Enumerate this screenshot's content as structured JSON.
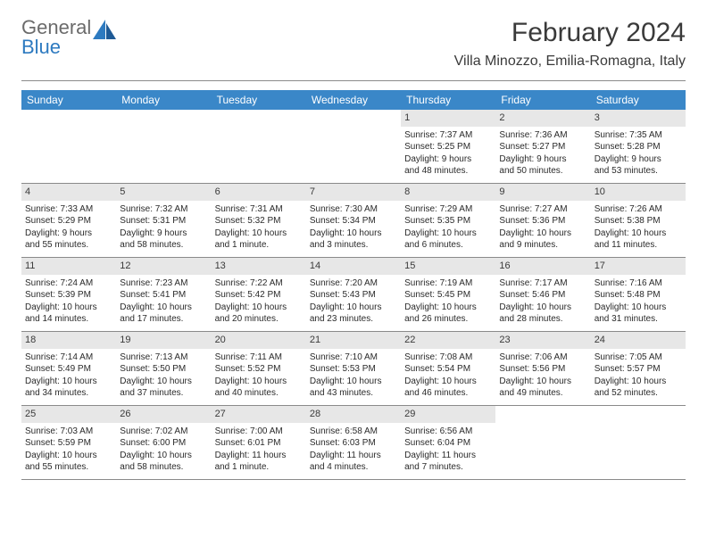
{
  "logo": {
    "word1": "General",
    "word2": "Blue"
  },
  "title": "February 2024",
  "location": "Villa Minozzo, Emilia-Romagna, Italy",
  "colors": {
    "header_bar": "#3a87c8",
    "day_band": "#e7e7e7",
    "rule": "#8a8a8a",
    "logo_gray": "#6b6b6b",
    "logo_blue": "#2d7ac0",
    "text": "#2a2a2a"
  },
  "dayheads": [
    "Sunday",
    "Monday",
    "Tuesday",
    "Wednesday",
    "Thursday",
    "Friday",
    "Saturday"
  ],
  "weeks": [
    [
      null,
      null,
      null,
      null,
      {
        "n": "1",
        "sr": "Sunrise: 7:37 AM",
        "ss": "Sunset: 5:25 PM",
        "d1": "Daylight: 9 hours",
        "d2": "and 48 minutes."
      },
      {
        "n": "2",
        "sr": "Sunrise: 7:36 AM",
        "ss": "Sunset: 5:27 PM",
        "d1": "Daylight: 9 hours",
        "d2": "and 50 minutes."
      },
      {
        "n": "3",
        "sr": "Sunrise: 7:35 AM",
        "ss": "Sunset: 5:28 PM",
        "d1": "Daylight: 9 hours",
        "d2": "and 53 minutes."
      }
    ],
    [
      {
        "n": "4",
        "sr": "Sunrise: 7:33 AM",
        "ss": "Sunset: 5:29 PM",
        "d1": "Daylight: 9 hours",
        "d2": "and 55 minutes."
      },
      {
        "n": "5",
        "sr": "Sunrise: 7:32 AM",
        "ss": "Sunset: 5:31 PM",
        "d1": "Daylight: 9 hours",
        "d2": "and 58 minutes."
      },
      {
        "n": "6",
        "sr": "Sunrise: 7:31 AM",
        "ss": "Sunset: 5:32 PM",
        "d1": "Daylight: 10 hours",
        "d2": "and 1 minute."
      },
      {
        "n": "7",
        "sr": "Sunrise: 7:30 AM",
        "ss": "Sunset: 5:34 PM",
        "d1": "Daylight: 10 hours",
        "d2": "and 3 minutes."
      },
      {
        "n": "8",
        "sr": "Sunrise: 7:29 AM",
        "ss": "Sunset: 5:35 PM",
        "d1": "Daylight: 10 hours",
        "d2": "and 6 minutes."
      },
      {
        "n": "9",
        "sr": "Sunrise: 7:27 AM",
        "ss": "Sunset: 5:36 PM",
        "d1": "Daylight: 10 hours",
        "d2": "and 9 minutes."
      },
      {
        "n": "10",
        "sr": "Sunrise: 7:26 AM",
        "ss": "Sunset: 5:38 PM",
        "d1": "Daylight: 10 hours",
        "d2": "and 11 minutes."
      }
    ],
    [
      {
        "n": "11",
        "sr": "Sunrise: 7:24 AM",
        "ss": "Sunset: 5:39 PM",
        "d1": "Daylight: 10 hours",
        "d2": "and 14 minutes."
      },
      {
        "n": "12",
        "sr": "Sunrise: 7:23 AM",
        "ss": "Sunset: 5:41 PM",
        "d1": "Daylight: 10 hours",
        "d2": "and 17 minutes."
      },
      {
        "n": "13",
        "sr": "Sunrise: 7:22 AM",
        "ss": "Sunset: 5:42 PM",
        "d1": "Daylight: 10 hours",
        "d2": "and 20 minutes."
      },
      {
        "n": "14",
        "sr": "Sunrise: 7:20 AM",
        "ss": "Sunset: 5:43 PM",
        "d1": "Daylight: 10 hours",
        "d2": "and 23 minutes."
      },
      {
        "n": "15",
        "sr": "Sunrise: 7:19 AM",
        "ss": "Sunset: 5:45 PM",
        "d1": "Daylight: 10 hours",
        "d2": "and 26 minutes."
      },
      {
        "n": "16",
        "sr": "Sunrise: 7:17 AM",
        "ss": "Sunset: 5:46 PM",
        "d1": "Daylight: 10 hours",
        "d2": "and 28 minutes."
      },
      {
        "n": "17",
        "sr": "Sunrise: 7:16 AM",
        "ss": "Sunset: 5:48 PM",
        "d1": "Daylight: 10 hours",
        "d2": "and 31 minutes."
      }
    ],
    [
      {
        "n": "18",
        "sr": "Sunrise: 7:14 AM",
        "ss": "Sunset: 5:49 PM",
        "d1": "Daylight: 10 hours",
        "d2": "and 34 minutes."
      },
      {
        "n": "19",
        "sr": "Sunrise: 7:13 AM",
        "ss": "Sunset: 5:50 PM",
        "d1": "Daylight: 10 hours",
        "d2": "and 37 minutes."
      },
      {
        "n": "20",
        "sr": "Sunrise: 7:11 AM",
        "ss": "Sunset: 5:52 PM",
        "d1": "Daylight: 10 hours",
        "d2": "and 40 minutes."
      },
      {
        "n": "21",
        "sr": "Sunrise: 7:10 AM",
        "ss": "Sunset: 5:53 PM",
        "d1": "Daylight: 10 hours",
        "d2": "and 43 minutes."
      },
      {
        "n": "22",
        "sr": "Sunrise: 7:08 AM",
        "ss": "Sunset: 5:54 PM",
        "d1": "Daylight: 10 hours",
        "d2": "and 46 minutes."
      },
      {
        "n": "23",
        "sr": "Sunrise: 7:06 AM",
        "ss": "Sunset: 5:56 PM",
        "d1": "Daylight: 10 hours",
        "d2": "and 49 minutes."
      },
      {
        "n": "24",
        "sr": "Sunrise: 7:05 AM",
        "ss": "Sunset: 5:57 PM",
        "d1": "Daylight: 10 hours",
        "d2": "and 52 minutes."
      }
    ],
    [
      {
        "n": "25",
        "sr": "Sunrise: 7:03 AM",
        "ss": "Sunset: 5:59 PM",
        "d1": "Daylight: 10 hours",
        "d2": "and 55 minutes."
      },
      {
        "n": "26",
        "sr": "Sunrise: 7:02 AM",
        "ss": "Sunset: 6:00 PM",
        "d1": "Daylight: 10 hours",
        "d2": "and 58 minutes."
      },
      {
        "n": "27",
        "sr": "Sunrise: 7:00 AM",
        "ss": "Sunset: 6:01 PM",
        "d1": "Daylight: 11 hours",
        "d2": "and 1 minute."
      },
      {
        "n": "28",
        "sr": "Sunrise: 6:58 AM",
        "ss": "Sunset: 6:03 PM",
        "d1": "Daylight: 11 hours",
        "d2": "and 4 minutes."
      },
      {
        "n": "29",
        "sr": "Sunrise: 6:56 AM",
        "ss": "Sunset: 6:04 PM",
        "d1": "Daylight: 11 hours",
        "d2": "and 7 minutes."
      },
      null,
      null
    ]
  ]
}
